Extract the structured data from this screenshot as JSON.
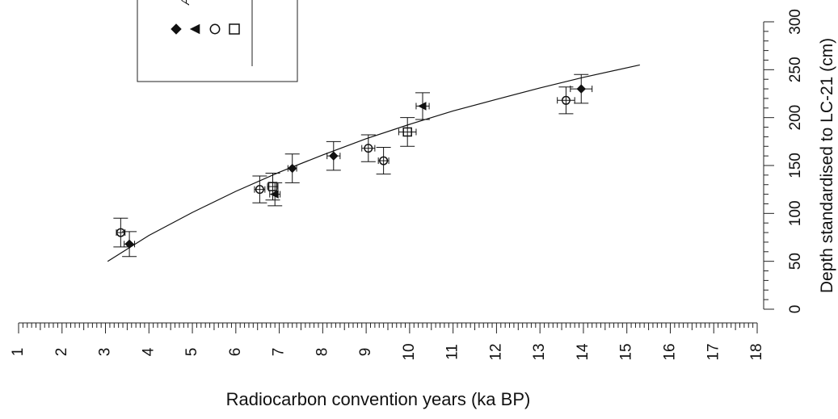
{
  "chart_data": {
    "type": "scatter",
    "title": "",
    "xlabel": "Radiocarbon convention years  (ka BP)",
    "ylabel": "Depth standardised to LC-21 (cm)",
    "xlim": [
      1,
      18
    ],
    "ylim": [
      0,
      300
    ],
    "x_ticks": [
      1,
      2,
      3,
      4,
      5,
      6,
      7,
      8,
      9,
      10,
      11,
      12,
      13,
      14,
      15,
      16,
      17,
      18
    ],
    "y_ticks": [
      0,
      50,
      100,
      150,
      200,
      250,
      300
    ],
    "grid": false,
    "legend": {
      "placement": "top-left",
      "partial_title": "A",
      "marker_order": [
        "diamond",
        "triangle",
        "circle",
        "square"
      ]
    },
    "series": [
      {
        "marker": "diamond",
        "points": [
          {
            "x": 3.55,
            "y": 68,
            "yerr": 13,
            "xerr": 0.12
          },
          {
            "x": 7.3,
            "y": 147,
            "yerr": 15,
            "xerr": 0.1
          },
          {
            "x": 8.25,
            "y": 160,
            "yerr": 15,
            "xerr": 0.15
          },
          {
            "x": 13.95,
            "y": 230,
            "yerr": 15,
            "xerr": 0.25
          }
        ]
      },
      {
        "marker": "triangle",
        "points": [
          {
            "x": 6.9,
            "y": 120,
            "yerr": 12,
            "xerr": 0.12
          },
          {
            "x": 10.3,
            "y": 212,
            "yerr": 14,
            "xerr": 0.15
          }
        ]
      },
      {
        "marker": "circle",
        "points": [
          {
            "x": 3.35,
            "y": 80,
            "yerr": 15,
            "xerr": 0.1
          },
          {
            "x": 6.55,
            "y": 125,
            "yerr": 14,
            "xerr": 0.12
          },
          {
            "x": 9.05,
            "y": 168,
            "yerr": 14,
            "xerr": 0.15
          },
          {
            "x": 9.4,
            "y": 155,
            "yerr": 14,
            "xerr": 0.12
          },
          {
            "x": 13.6,
            "y": 218,
            "yerr": 14,
            "xerr": 0.2
          }
        ]
      },
      {
        "marker": "square",
        "points": [
          {
            "x": 6.85,
            "y": 128,
            "yerr": 14,
            "xerr": 0.12
          },
          {
            "x": 9.95,
            "y": 185,
            "yerr": 15,
            "xerr": 0.2
          }
        ]
      }
    ],
    "fit_curve": {
      "x": [
        3.05,
        4.0,
        5.0,
        6.0,
        7.0,
        8.0,
        9.0,
        10.0,
        11.0,
        12.0,
        13.0,
        14.0,
        15.3
      ],
      "y": [
        50,
        77,
        101,
        123,
        143,
        161,
        178,
        193,
        207,
        219,
        231,
        242,
        255
      ]
    }
  }
}
